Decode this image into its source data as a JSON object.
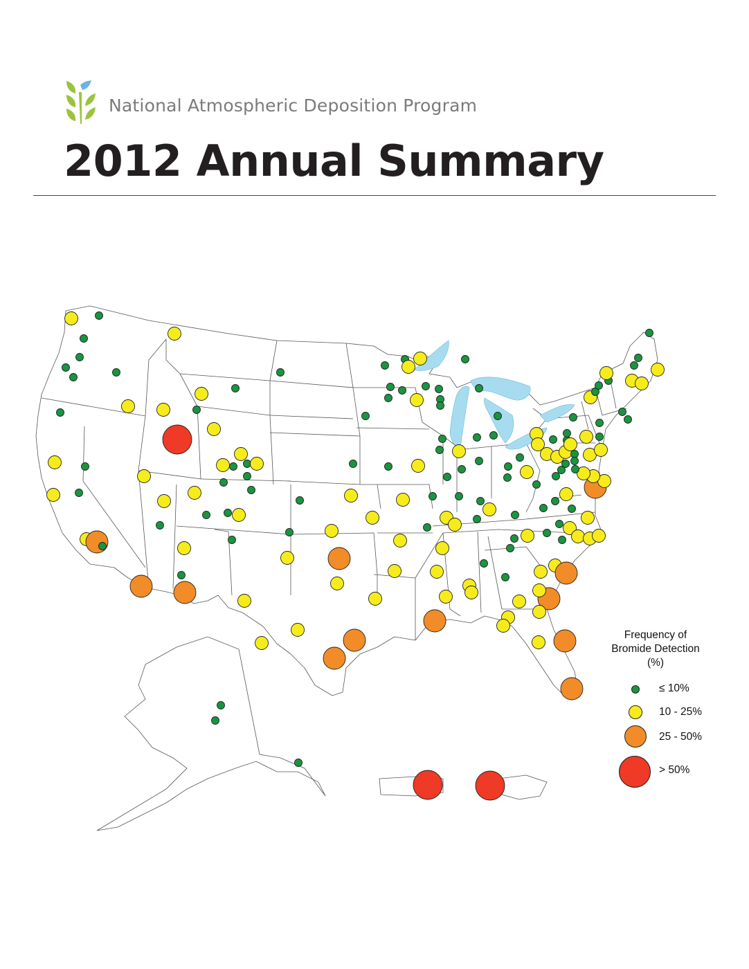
{
  "header": {
    "program_name": "National Atmospheric Deposition Program",
    "title": "2012 Annual Summary"
  },
  "colors": {
    "low": "#1a9440",
    "mid": "#f7ec1b",
    "high": "#f28c28",
    "very_high": "#ee3a26",
    "lakes": "#a7dcf0",
    "logo_green": "#9ac43c",
    "logo_blue": "#6cb3e0"
  },
  "legend": {
    "title_line1": "Frequency of",
    "title_line2": "Bromide Detection",
    "title_line3": "(%)",
    "classes": [
      {
        "label": "≤ 10%",
        "class": "low"
      },
      {
        "label": "10 - 25%",
        "class": "mid"
      },
      {
        "label": "25 - 50%",
        "class": "high"
      },
      {
        "label": "> 50%",
        "class": "very_high"
      }
    ]
  }
}
